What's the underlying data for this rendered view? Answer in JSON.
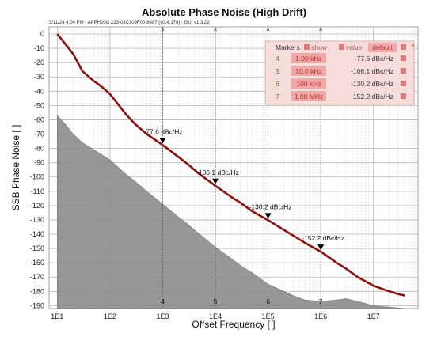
{
  "chart_data": {
    "type": "line",
    "title": "Absolute Phase Noise (High Drift)",
    "subtitle": "3/11/24 4:04 PM - APPH20G 223-03C309F00-8487 (v0.4.178) - GUI v1.3.22",
    "xlabel": "Offset Frequency [ ]",
    "ylabel": "SSB Phase Noise [ ]",
    "x_scale": "log",
    "xlim": [
      7,
      70000000
    ],
    "ylim": [
      -192,
      5
    ],
    "x_ticks": [
      {
        "value": 10,
        "label": "1E1"
      },
      {
        "value": 100,
        "label": "1E2"
      },
      {
        "value": 1000,
        "label": "1E3"
      },
      {
        "value": 10000,
        "label": "1E4"
      },
      {
        "value": 100000,
        "label": "1E5"
      },
      {
        "value": 1000000,
        "label": "1E6"
      },
      {
        "value": 10000000,
        "label": "1E7"
      }
    ],
    "y_ticks": [
      0,
      -10,
      -20,
      -30,
      -40,
      -50,
      -60,
      -70,
      -80,
      -90,
      -100,
      -110,
      -120,
      -130,
      -140,
      -150,
      -160,
      -170,
      -180,
      -190
    ],
    "grid": true,
    "series": [
      {
        "color": "#8b1010",
        "points": [
          [
            10,
            0
          ],
          [
            15,
            -8
          ],
          [
            20,
            -14
          ],
          [
            30,
            -26
          ],
          [
            40,
            -30
          ],
          [
            50,
            -33
          ],
          [
            60,
            -35
          ],
          [
            70,
            -37
          ],
          [
            100,
            -42
          ],
          [
            200,
            -56
          ],
          [
            300,
            -63
          ],
          [
            500,
            -70
          ],
          [
            1000,
            -77.6
          ],
          [
            2000,
            -86
          ],
          [
            3000,
            -91
          ],
          [
            5000,
            -98
          ],
          [
            10000,
            -106.1
          ],
          [
            20000,
            -114
          ],
          [
            30000,
            -118
          ],
          [
            50000,
            -124
          ],
          [
            100000,
            -130.2
          ],
          [
            200000,
            -137
          ],
          [
            300000,
            -141
          ],
          [
            500000,
            -146
          ],
          [
            1000000,
            -152.2
          ],
          [
            2000000,
            -160
          ],
          [
            3000000,
            -164
          ],
          [
            5000000,
            -170
          ],
          [
            10000000,
            -176
          ],
          [
            20000000,
            -180
          ],
          [
            30000000,
            -182
          ],
          [
            40000000,
            -183
          ]
        ]
      },
      {
        "color": "#8c8c8c",
        "fill": true,
        "points": [
          [
            10,
            -57
          ],
          [
            15,
            -64
          ],
          [
            20,
            -70
          ],
          [
            30,
            -76
          ],
          [
            50,
            -81
          ],
          [
            100,
            -88
          ],
          [
            200,
            -98
          ],
          [
            300,
            -103
          ],
          [
            500,
            -110
          ],
          [
            1000,
            -119
          ],
          [
            2000,
            -128
          ],
          [
            3000,
            -133
          ],
          [
            5000,
            -140
          ],
          [
            10000,
            -149
          ],
          [
            20000,
            -157
          ],
          [
            30000,
            -162
          ],
          [
            50000,
            -167
          ],
          [
            100000,
            -175
          ],
          [
            200000,
            -180
          ],
          [
            300000,
            -183
          ],
          [
            500000,
            -186
          ],
          [
            1000000,
            -187
          ],
          [
            2000000,
            -186
          ],
          [
            3000000,
            -185
          ],
          [
            5000000,
            -187
          ],
          [
            10000000,
            -190
          ],
          [
            20000000,
            -191
          ],
          [
            40000000,
            -192
          ]
        ]
      }
    ],
    "markers": [
      {
        "id": "4",
        "x": 1000,
        "y": -77.6,
        "label": "-77.6 dBc/Hz"
      },
      {
        "id": "5",
        "x": 10000,
        "y": -106.1,
        "label": "-106.1 dBc/Hz"
      },
      {
        "id": "6",
        "x": 100000,
        "y": -130.2,
        "label": "-130.2 dBc/Hz"
      },
      {
        "id": "7",
        "x": 1000000,
        "y": -152.2,
        "label": "-152.2 dBc/Hz"
      }
    ]
  },
  "legend": {
    "header": {
      "title": "Markers",
      "show": "show",
      "value": "value",
      "default": "default"
    },
    "rows": [
      {
        "id": "4",
        "freq": "1.00 kHz",
        "value": "-77.6 dBc/Hz"
      },
      {
        "id": "5",
        "freq": "10.0 kHz",
        "value": "-106.1 dBc/Hz"
      },
      {
        "id": "6",
        "freq": "100 kHz",
        "value": "-130.2 dBc/Hz"
      },
      {
        "id": "7",
        "freq": "1.00 MHz",
        "value": "-152.2 dBc/Hz"
      }
    ]
  },
  "colors": {
    "trace": "#8b1010",
    "noise_fill": "#8c8c8c",
    "legend_bg": "#f7dcdc",
    "legend_cell": "#f0a8a8",
    "legend_text_green": "#4a8a20"
  }
}
